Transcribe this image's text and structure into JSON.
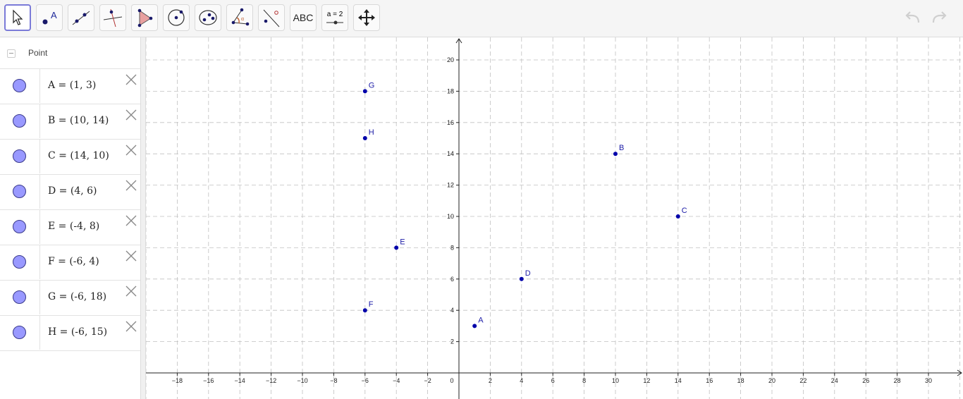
{
  "toolbar": {
    "tools": [
      {
        "name": "move-tool",
        "icon": "cursor-arrow-icon",
        "active": true
      },
      {
        "name": "point-tool",
        "icon": "point-icon"
      },
      {
        "name": "line-tool",
        "icon": "line-icon"
      },
      {
        "name": "perpendicular-tool",
        "icon": "perpendicular-icon"
      },
      {
        "name": "polygon-tool",
        "icon": "polygon-icon"
      },
      {
        "name": "circle-tool",
        "icon": "circle-icon"
      },
      {
        "name": "ellipse-tool",
        "icon": "ellipse-icon"
      },
      {
        "name": "angle-tool",
        "icon": "angle-icon"
      },
      {
        "name": "reflect-tool",
        "icon": "reflect-icon"
      },
      {
        "name": "text-tool",
        "icon": "text-icon",
        "label": "ABC"
      },
      {
        "name": "slider-tool",
        "icon": "slider-icon",
        "label": "a = 2"
      },
      {
        "name": "move-view-tool",
        "icon": "move-view-icon"
      }
    ],
    "undo_icon": "undo-icon",
    "redo_icon": "redo-icon"
  },
  "algebra": {
    "category_label": "Point",
    "items": [
      {
        "def": "A = (1, 3)",
        "x": 1,
        "y": 3,
        "name": "A"
      },
      {
        "def": "B = (10, 14)",
        "x": 10,
        "y": 14,
        "name": "B"
      },
      {
        "def": "C = (14, 10)",
        "x": 14,
        "y": 10,
        "name": "C"
      },
      {
        "def": "D = (4, 6)",
        "x": 4,
        "y": 6,
        "name": "D"
      },
      {
        "def": "E = (-4, 8)",
        "x": -4,
        "y": 8,
        "name": "E"
      },
      {
        "def": "F = (-6, 4)",
        "x": -6,
        "y": 4,
        "name": "F"
      },
      {
        "def": "G = (-6, 18)",
        "x": -6,
        "y": 18,
        "name": "G"
      },
      {
        "def": "H = (-6, 15)",
        "x": -6,
        "y": 15,
        "name": "H"
      }
    ]
  },
  "graph": {
    "x_ticks": [
      "-18",
      "-16",
      "-14",
      "-12",
      "-10",
      "-8",
      "-6",
      "-4",
      "-2",
      "0",
      "2",
      "4",
      "6",
      "8",
      "10",
      "12",
      "14",
      "16",
      "18",
      "20",
      "22",
      "24",
      "26",
      "28",
      "30"
    ],
    "y_ticks": [
      "2",
      "4",
      "6",
      "8",
      "10",
      "12",
      "14",
      "16",
      "18",
      "20"
    ],
    "point_color": "#0000aa",
    "marble_color": "#9999ff",
    "grid_color": "#c0c0c0"
  }
}
